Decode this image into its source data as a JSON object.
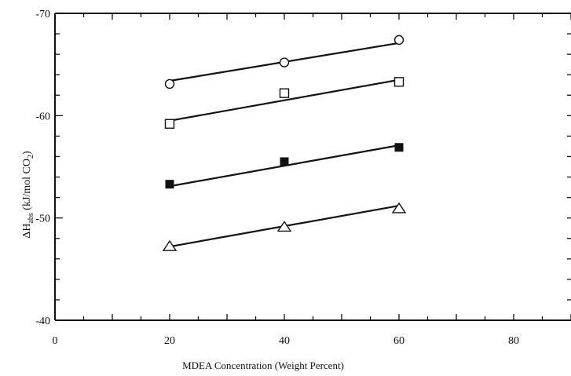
{
  "chart_data": {
    "type": "scatter",
    "xlabel": "MDEA Concentration (Weight Percent)",
    "ylabel_parts": {
      "delta_h": "ΔH",
      "abs": "abs",
      "units": " (kJ/mol CO",
      "two": "2",
      "close": ")"
    },
    "xlim": [
      0,
      90
    ],
    "ylim": [
      -40,
      -70
    ],
    "x_ticks": [
      0,
      20,
      40,
      60,
      80
    ],
    "x_tick_labels": [
      "0",
      "20",
      "40",
      "60",
      "80"
    ],
    "y_ticks": [
      -70,
      -60,
      -50,
      -40
    ],
    "y_tick_labels": [
      "-70",
      "-60",
      "-50",
      "-40"
    ],
    "grid": false,
    "legend": "none",
    "series": [
      {
        "marker": "circle-open",
        "x": [
          20,
          40,
          60
        ],
        "y": [
          -63.1,
          -65.2,
          -67.4
        ],
        "fit": [
          [
            20,
            -63.4
          ],
          [
            60,
            -67.1
          ]
        ]
      },
      {
        "marker": "square-open",
        "x": [
          20,
          40,
          60
        ],
        "y": [
          -59.2,
          -62.2,
          -63.3
        ],
        "fit": [
          [
            20,
            -59.5
          ],
          [
            60,
            -63.5
          ]
        ]
      },
      {
        "marker": "square-filled",
        "x": [
          20,
          40,
          60
        ],
        "y": [
          -53.3,
          -55.5,
          -56.9
        ],
        "fit": [
          [
            20,
            -53.1
          ],
          [
            60,
            -57.1
          ]
        ]
      },
      {
        "marker": "triangle-open",
        "x": [
          20,
          40,
          60
        ],
        "y": [
          -47.2,
          -49.1,
          -50.9
        ],
        "fit": [
          [
            20,
            -47.2
          ],
          [
            60,
            -51.2
          ]
        ]
      }
    ]
  }
}
